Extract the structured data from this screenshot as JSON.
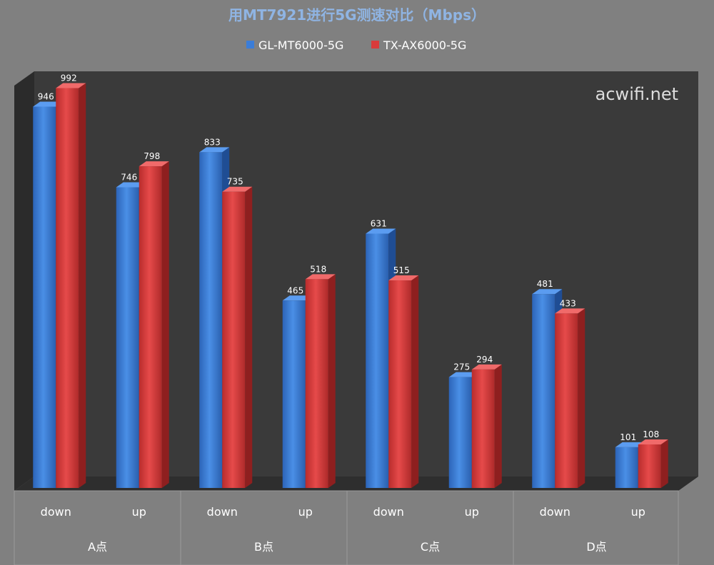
{
  "chart_data": {
    "type": "bar",
    "title": "用MT7921进行5G测速对比（Mbps）",
    "categories": [
      "down",
      "up",
      "down",
      "up",
      "down",
      "up",
      "down",
      "up"
    ],
    "groups": [
      "A点",
      "B点",
      "C点",
      "D点"
    ],
    "series": [
      {
        "name": "GL-MT6000-5G",
        "color": "#3b7dd8",
        "values": [
          946,
          746,
          833,
          465,
          631,
          275,
          481,
          101
        ]
      },
      {
        "name": "TX-AX6000-5G",
        "color": "#d83b3b",
        "values": [
          992,
          798,
          735,
          518,
          515,
          294,
          433,
          108
        ]
      }
    ],
    "ylim": [
      0,
      1000
    ],
    "legend_position": "top",
    "watermark": "acwifi.net",
    "colors": {
      "background": "#808080",
      "plot_back": "#3a3a3a",
      "floor": "#2e2e2e",
      "title": "#8fb4e3"
    }
  }
}
